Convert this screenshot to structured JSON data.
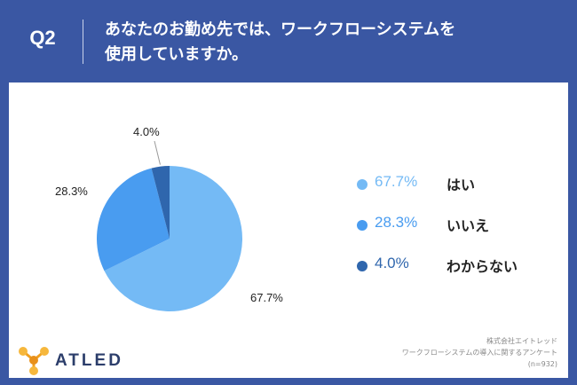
{
  "header": {
    "q_label": "Q2",
    "question_line1": "あなたのお勤め先では、ワークフローシステムを",
    "question_line2": "使用していますか。"
  },
  "chart_data": {
    "type": "pie",
    "slices": [
      {
        "label": "はい",
        "value": 67.7,
        "display": "67.7%",
        "color": "#74baf5"
      },
      {
        "label": "いいえ",
        "value": 28.3,
        "display": "28.3%",
        "color": "#499cf0"
      },
      {
        "label": "わからない",
        "value": 4.0,
        "display": "4.0%",
        "color": "#2f66ad"
      }
    ]
  },
  "legend": [
    {
      "pct": "67.7%",
      "label": "はい",
      "pct_color": "#74baf5"
    },
    {
      "pct": "28.3%",
      "label": "いいえ",
      "pct_color": "#499cf0"
    },
    {
      "pct": "4.0%",
      "label": "わからない",
      "pct_color": "#2f66ad"
    }
  ],
  "footer": {
    "logo_text": "ATLED",
    "source_line1": "株式会社エイトレッド",
    "source_line2": "ワークフローシステムの導入に関するアンケート",
    "source_line3": "(n=932)"
  }
}
